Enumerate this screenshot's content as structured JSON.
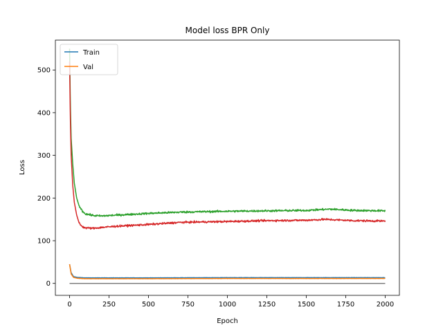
{
  "chart_data": {
    "type": "line",
    "title": "Model loss BPR Only",
    "xlabel": "Epoch",
    "ylabel": "Loss",
    "xlim": [
      -90,
      2090
    ],
    "ylim": [
      -28,
      570
    ],
    "xticks": [
      0,
      250,
      500,
      750,
      1000,
      1250,
      1500,
      1750,
      2000
    ],
    "yticks": [
      0,
      100,
      200,
      300,
      400,
      500
    ],
    "grid": false,
    "legend": {
      "placement": "top-left",
      "entries": [
        "Train",
        "Val"
      ]
    },
    "series": [
      {
        "name": "Train",
        "color": "#1f77b4",
        "noise": 0.3,
        "points": [
          [
            0,
            45
          ],
          [
            10,
            25
          ],
          [
            25,
            16
          ],
          [
            50,
            14
          ],
          [
            100,
            13
          ],
          [
            500,
            13
          ],
          [
            1000,
            13.5
          ],
          [
            1500,
            13.5
          ],
          [
            2000,
            13.5
          ]
        ]
      },
      {
        "name": "Val",
        "color": "#ff7f0e",
        "noise": 0.3,
        "points": [
          [
            0,
            45
          ],
          [
            10,
            22
          ],
          [
            25,
            14
          ],
          [
            50,
            12
          ],
          [
            100,
            11
          ],
          [
            500,
            11
          ],
          [
            1000,
            11.5
          ],
          [
            1500,
            11.5
          ],
          [
            2000,
            11.5
          ]
        ]
      },
      {
        "color": "#2ca02c",
        "noise": 2.2,
        "points": [
          [
            0,
            550
          ],
          [
            5,
            420
          ],
          [
            10,
            340
          ],
          [
            20,
            280
          ],
          [
            30,
            235
          ],
          [
            45,
            200
          ],
          [
            60,
            182
          ],
          [
            80,
            170
          ],
          [
            100,
            163
          ],
          [
            150,
            159
          ],
          [
            200,
            158
          ],
          [
            300,
            160
          ],
          [
            500,
            164
          ],
          [
            700,
            167
          ],
          [
            1000,
            169
          ],
          [
            1250,
            170
          ],
          [
            1500,
            171
          ],
          [
            1650,
            174
          ],
          [
            1800,
            171
          ],
          [
            2000,
            170
          ]
        ]
      },
      {
        "color": "#d62728",
        "noise": 2.2,
        "points": [
          [
            0,
            520
          ],
          [
            5,
            380
          ],
          [
            10,
            300
          ],
          [
            20,
            230
          ],
          [
            30,
            190
          ],
          [
            45,
            160
          ],
          [
            60,
            142
          ],
          [
            80,
            133
          ],
          [
            100,
            130
          ],
          [
            150,
            129
          ],
          [
            200,
            131
          ],
          [
            300,
            134
          ],
          [
            500,
            138
          ],
          [
            700,
            143
          ],
          [
            1000,
            145
          ],
          [
            1250,
            147
          ],
          [
            1500,
            148
          ],
          [
            1620,
            150
          ],
          [
            1800,
            147
          ],
          [
            2000,
            146
          ]
        ]
      },
      {
        "color": "#9467bd",
        "noise": 0,
        "points": [
          [
            0,
            0
          ],
          [
            2000,
            0
          ]
        ]
      },
      {
        "color": "#8c564b",
        "noise": 0,
        "points": [
          [
            0,
            0
          ],
          [
            2000,
            0
          ]
        ]
      },
      {
        "color": "#e377c2",
        "noise": 0,
        "points": [
          [
            0,
            0
          ],
          [
            2000,
            0
          ]
        ]
      },
      {
        "color": "#7f7f7f",
        "noise": 0,
        "points": [
          [
            0,
            0
          ],
          [
            2000,
            0
          ]
        ]
      }
    ]
  }
}
